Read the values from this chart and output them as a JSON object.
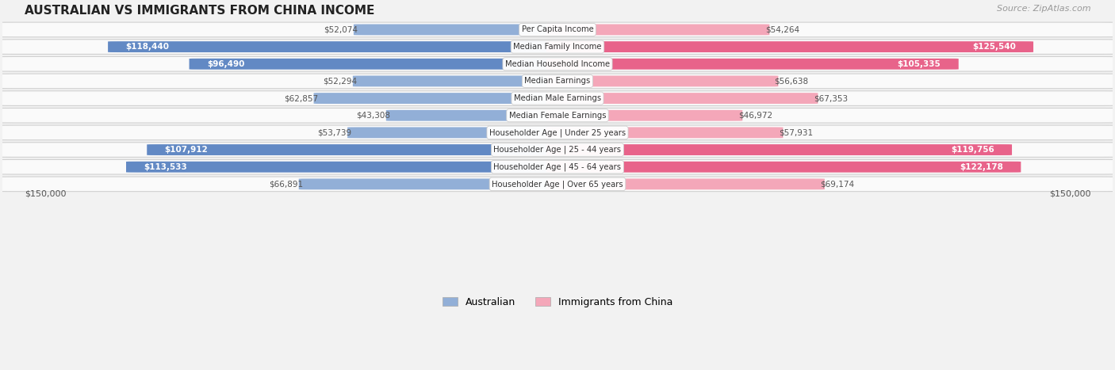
{
  "title": "AUSTRALIAN VS IMMIGRANTS FROM CHINA INCOME",
  "source": "Source: ZipAtlas.com",
  "categories": [
    "Per Capita Income",
    "Median Family Income",
    "Median Household Income",
    "Median Earnings",
    "Median Male Earnings",
    "Median Female Earnings",
    "Householder Age | Under 25 years",
    "Householder Age | 25 - 44 years",
    "Householder Age | 45 - 64 years",
    "Householder Age | Over 65 years"
  ],
  "australian_values": [
    52074,
    118440,
    96490,
    52294,
    62857,
    43308,
    53739,
    107912,
    113533,
    66891
  ],
  "china_values": [
    54264,
    125540,
    105335,
    56638,
    67353,
    46972,
    57931,
    119756,
    122178,
    69174
  ],
  "australian_labels": [
    "$52,074",
    "$118,440",
    "$96,490",
    "$52,294",
    "$62,857",
    "$43,308",
    "$53,739",
    "$107,912",
    "$113,533",
    "$66,891"
  ],
  "china_labels": [
    "$54,264",
    "$125,540",
    "$105,335",
    "$56,638",
    "$67,353",
    "$46,972",
    "$57,931",
    "$119,756",
    "$122,178",
    "$69,174"
  ],
  "max_value": 150000,
  "australian_color": "#92afd7",
  "australian_color_strong": "#6289c4",
  "china_color": "#f4a7b9",
  "china_color_strong": "#e8638a",
  "background_color": "#f2f2f2",
  "row_background": "#fafafa",
  "label_threshold": 90000,
  "legend_australian": "Australian",
  "legend_china": "Immigrants from China",
  "figsize": [
    14.06,
    4.67
  ],
  "dpi": 100
}
